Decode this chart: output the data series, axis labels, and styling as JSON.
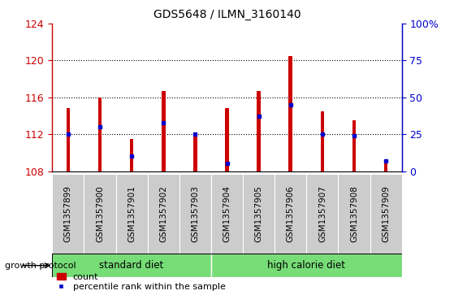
{
  "title": "GDS5648 / ILMN_3160140",
  "samples": [
    "GSM1357899",
    "GSM1357900",
    "GSM1357901",
    "GSM1357902",
    "GSM1357903",
    "GSM1357904",
    "GSM1357905",
    "GSM1357906",
    "GSM1357907",
    "GSM1357908",
    "GSM1357909"
  ],
  "count_values": [
    114.8,
    116.0,
    111.5,
    116.7,
    111.8,
    114.8,
    116.7,
    120.5,
    114.5,
    113.5,
    109.0
  ],
  "percentile_values": [
    25,
    30,
    10,
    33,
    25,
    5,
    37,
    45,
    25,
    24,
    7
  ],
  "bar_bottom": 108,
  "ylim_left": [
    108,
    124
  ],
  "ylim_right": [
    0,
    100
  ],
  "yticks_left": [
    108,
    112,
    116,
    120,
    124
  ],
  "yticks_right": [
    0,
    25,
    50,
    75,
    100
  ],
  "yticklabels_right": [
    "0",
    "25",
    "50",
    "75",
    "100%"
  ],
  "groups": [
    {
      "label": "standard diet",
      "start": 0,
      "end": 4
    },
    {
      "label": "high calorie diet",
      "start": 5,
      "end": 10
    }
  ],
  "group_protocol_label": "growth protocol",
  "bar_color_count": "#cc0000",
  "bar_color_percentile": "#0000cc",
  "bar_width": 0.12,
  "bar_bg_color": "#cccccc",
  "group_bg_color": "#77dd77",
  "title_color": "#000000",
  "left_tick_color": "#cc0000",
  "right_tick_color": "#0000cc",
  "legend_count_label": "count",
  "legend_percentile_label": "percentile rank within the sample"
}
